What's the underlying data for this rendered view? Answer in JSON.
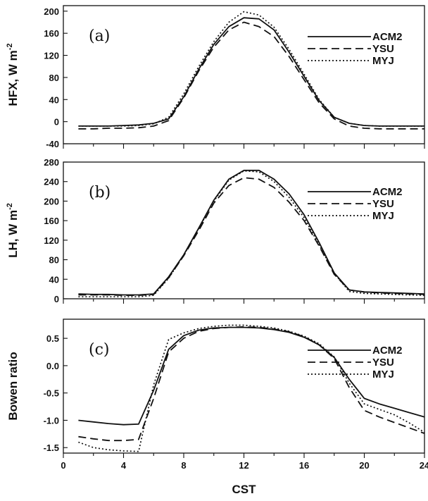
{
  "chart_data": [
    {
      "type": "line",
      "panel_label": "(a)",
      "ylabel": "HFX, W m",
      "ylabel_sup": "-2",
      "xlabel": "",
      "xlim": [
        0,
        24
      ],
      "ylim": [
        -40,
        210
      ],
      "yticks": [
        -40,
        0,
        40,
        80,
        120,
        160,
        200
      ],
      "xticks": [
        0,
        4,
        8,
        12,
        16,
        20,
        24
      ],
      "show_xtick_labels": false,
      "legend_placement": "right",
      "series": [
        {
          "name": "ACM2",
          "style": "solid",
          "x": [
            1,
            2,
            3,
            4,
            5,
            6,
            7,
            8,
            9,
            10,
            11,
            12,
            13,
            14,
            15,
            16,
            17,
            18,
            19,
            20,
            21,
            22,
            23,
            24
          ],
          "y": [
            -8,
            -8,
            -8,
            -7,
            -6,
            -3,
            5,
            45,
            95,
            140,
            172,
            188,
            186,
            166,
            126,
            82,
            38,
            8,
            -3,
            -7,
            -8,
            -8,
            -8,
            -8
          ]
        },
        {
          "name": "YSU",
          "style": "dashed",
          "x": [
            1,
            2,
            3,
            4,
            5,
            6,
            7,
            8,
            9,
            10,
            11,
            12,
            13,
            14,
            15,
            16,
            17,
            18,
            19,
            20,
            21,
            22,
            23,
            24
          ],
          "y": [
            -13,
            -13,
            -12,
            -12,
            -11,
            -8,
            2,
            43,
            92,
            135,
            166,
            180,
            172,
            154,
            118,
            76,
            34,
            5,
            -8,
            -12,
            -13,
            -13,
            -13,
            -13
          ]
        },
        {
          "name": "MYJ",
          "style": "dotted",
          "x": [
            1,
            2,
            3,
            4,
            5,
            6,
            7,
            8,
            9,
            10,
            11,
            12,
            13,
            14,
            15,
            16,
            17,
            18,
            19,
            20,
            21,
            22,
            23,
            24
          ],
          "y": [
            -8,
            -8,
            -8,
            -8,
            -7,
            -4,
            8,
            50,
            100,
            145,
            180,
            199,
            193,
            171,
            131,
            86,
            40,
            8,
            -3,
            -7,
            -8,
            -8,
            -8,
            -8
          ]
        }
      ]
    },
    {
      "type": "line",
      "panel_label": "(b)",
      "ylabel": "LH, W m",
      "ylabel_sup": "-2",
      "xlabel": "",
      "xlim": [
        0,
        24
      ],
      "ylim": [
        0,
        280
      ],
      "yticks": [
        0,
        40,
        80,
        120,
        160,
        200,
        240,
        280
      ],
      "xticks": [
        0,
        4,
        8,
        12,
        16,
        20,
        24
      ],
      "show_xtick_labels": false,
      "legend_placement": "right",
      "series": [
        {
          "name": "ACM2",
          "style": "solid",
          "x": [
            1,
            2,
            3,
            4,
            5,
            6,
            7,
            8,
            9,
            10,
            11,
            12,
            13,
            14,
            15,
            16,
            17,
            18,
            19,
            20,
            21,
            22,
            23,
            24
          ],
          "y": [
            10,
            9,
            9,
            8,
            8,
            10,
            45,
            90,
            145,
            202,
            245,
            263,
            263,
            245,
            215,
            172,
            115,
            53,
            18,
            14,
            13,
            12,
            11,
            10
          ]
        },
        {
          "name": "YSU",
          "style": "dashed",
          "x": [
            1,
            2,
            3,
            4,
            5,
            6,
            7,
            8,
            9,
            10,
            11,
            12,
            13,
            14,
            15,
            16,
            17,
            18,
            19,
            20,
            21,
            22,
            23,
            24
          ],
          "y": [
            8,
            8,
            8,
            7,
            7,
            9,
            43,
            88,
            140,
            196,
            232,
            248,
            245,
            228,
            198,
            160,
            108,
            50,
            18,
            14,
            12,
            11,
            10,
            9
          ]
        },
        {
          "name": "MYJ",
          "style": "dotted",
          "x": [
            1,
            2,
            3,
            4,
            5,
            6,
            7,
            8,
            9,
            10,
            11,
            12,
            13,
            14,
            15,
            16,
            17,
            18,
            19,
            20,
            21,
            22,
            23,
            24
          ],
          "y": [
            4,
            4,
            4,
            4,
            4,
            7,
            42,
            89,
            144,
            200,
            243,
            262,
            260,
            240,
            208,
            166,
            110,
            52,
            15,
            11,
            10,
            9,
            8,
            7
          ]
        }
      ]
    },
    {
      "type": "line",
      "panel_label": "(c)",
      "ylabel": "Bowen ratio",
      "ylabel_sup": "",
      "xlabel": "CST",
      "xlim": [
        0,
        24
      ],
      "ylim": [
        -1.6,
        0.85
      ],
      "yticks": [
        -1.5,
        -1.0,
        -0.5,
        0.0,
        0.5
      ],
      "ytick_labels": [
        "-1.5",
        "-1.0",
        "-0.5",
        "0.0",
        "0.5"
      ],
      "xticks": [
        0,
        4,
        8,
        12,
        16,
        20,
        24
      ],
      "show_xtick_labels": true,
      "legend_placement": "right",
      "series": [
        {
          "name": "ACM2",
          "style": "solid",
          "x": [
            1,
            2,
            3,
            4,
            5,
            6,
            7,
            8,
            9,
            10,
            11,
            12,
            13,
            14,
            15,
            16,
            17,
            18,
            19,
            20,
            21,
            22,
            23,
            24
          ],
          "y": [
            -1.0,
            -1.03,
            -1.06,
            -1.08,
            -1.07,
            -0.45,
            0.3,
            0.55,
            0.65,
            0.69,
            0.7,
            0.7,
            0.69,
            0.66,
            0.61,
            0.52,
            0.38,
            0.15,
            -0.25,
            -0.6,
            -0.7,
            -0.78,
            -0.86,
            -0.94
          ]
        },
        {
          "name": "YSU",
          "style": "dashed",
          "x": [
            1,
            2,
            3,
            4,
            5,
            6,
            7,
            8,
            9,
            10,
            11,
            12,
            13,
            14,
            15,
            16,
            17,
            18,
            19,
            20,
            21,
            22,
            23,
            24
          ],
          "y": [
            -1.3,
            -1.34,
            -1.37,
            -1.37,
            -1.35,
            -0.6,
            0.25,
            0.5,
            0.63,
            0.68,
            0.7,
            0.71,
            0.7,
            0.67,
            0.62,
            0.53,
            0.38,
            0.13,
            -0.4,
            -0.82,
            -0.94,
            -1.04,
            -1.14,
            -1.24
          ]
        },
        {
          "name": "MYJ",
          "style": "dotted",
          "x": [
            1,
            2,
            3,
            4,
            5,
            6,
            7,
            8,
            9,
            10,
            11,
            12,
            13,
            14,
            15,
            16,
            17,
            18,
            19,
            20,
            21,
            22,
            23,
            24
          ],
          "y": [
            -1.4,
            -1.5,
            -1.54,
            -1.56,
            -1.57,
            -0.35,
            0.48,
            0.6,
            0.68,
            0.72,
            0.74,
            0.74,
            0.72,
            0.69,
            0.63,
            0.54,
            0.4,
            0.16,
            -0.32,
            -0.7,
            -0.8,
            -0.9,
            -1.05,
            -1.22
          ]
        }
      ]
    }
  ]
}
